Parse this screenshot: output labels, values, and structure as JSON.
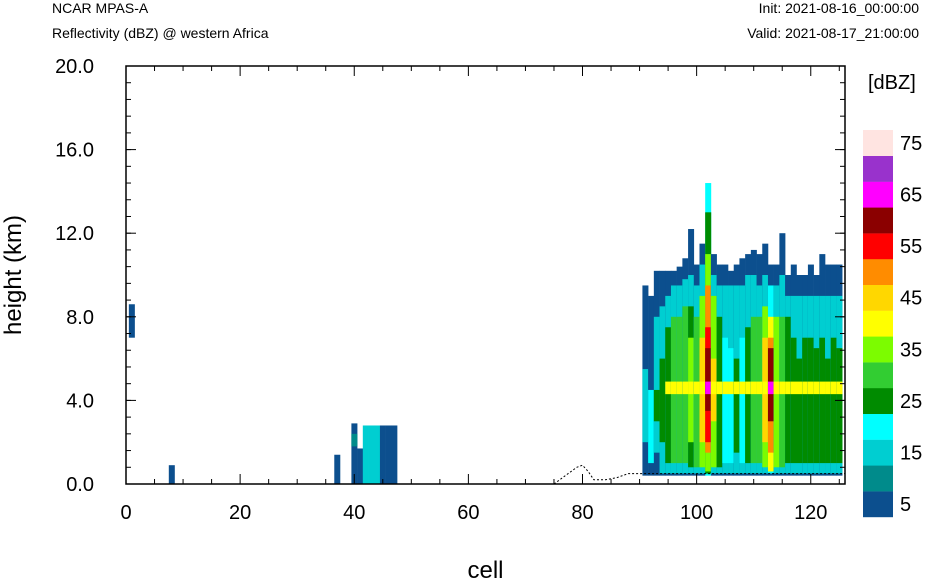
{
  "header": {
    "model": "NCAR MPAS-A",
    "field": "Reflectivity (dBZ) @ western Africa",
    "init": "Init: 2021-08-16_00:00:00",
    "valid": "Valid: 2021-08-17_21:00:00"
  },
  "chart_data": {
    "type": "heatmap",
    "title": "Reflectivity (dBZ) @ western Africa",
    "xlabel": "cell",
    "ylabel": "height (km)",
    "xlim": [
      0,
      126
    ],
    "ylim": [
      0,
      20
    ],
    "x_ticks": [
      "0",
      "20",
      "40",
      "60",
      "80",
      "100",
      "120"
    ],
    "y_ticks": [
      "0.0",
      "4.0",
      "8.0",
      "12.0",
      "16.0",
      "20.0"
    ],
    "colorbar": {
      "unit": "[dBZ]",
      "levels": [
        5,
        10,
        15,
        20,
        25,
        30,
        35,
        40,
        45,
        50,
        55,
        60,
        65,
        70,
        75
      ],
      "labels": [
        "5",
        "15",
        "25",
        "35",
        "45",
        "55",
        "65",
        "75"
      ],
      "colors": [
        "#0c4f8e",
        "#008b8b",
        "#00ced1",
        "#00ffff",
        "#008b00",
        "#32cd32",
        "#7cfc00",
        "#ffff00",
        "#ffd700",
        "#ff8c00",
        "#ff0000",
        "#8b0000",
        "#ff00ff",
        "#9932cc",
        "#ffe4e1"
      ]
    },
    "terrain": [
      [
        0,
        0.0
      ],
      [
        75,
        0.0
      ],
      [
        77,
        0.4
      ],
      [
        79,
        0.8
      ],
      [
        80,
        0.9
      ],
      [
        81,
        0.6
      ],
      [
        82,
        0.2
      ],
      [
        84,
        0.2
      ],
      [
        86,
        0.3
      ],
      [
        88,
        0.5
      ],
      [
        90,
        0.5
      ],
      [
        126,
        0.5
      ]
    ],
    "cells": [
      [
        1,
        7.0,
        8.6,
        5
      ],
      [
        8,
        0.0,
        0.9,
        5
      ],
      [
        37,
        0.0,
        1.4,
        5
      ],
      [
        40,
        0.0,
        2.9,
        5
      ],
      [
        40,
        1.8,
        2.4,
        10
      ],
      [
        41,
        0.0,
        1.7,
        5
      ],
      [
        42,
        0.0,
        2.8,
        15
      ],
      [
        43,
        0.0,
        2.8,
        15
      ],
      [
        44,
        0.0,
        2.8,
        15
      ],
      [
        45,
        0.0,
        2.8,
        5
      ],
      [
        46,
        0.0,
        2.8,
        5
      ],
      [
        47,
        0.0,
        2.8,
        5
      ],
      [
        91,
        0.4,
        9.5,
        5
      ],
      [
        91,
        2.0,
        5.5,
        15
      ],
      [
        92,
        0.4,
        9.0,
        5
      ],
      [
        92,
        1.0,
        4.5,
        20
      ],
      [
        93,
        0.4,
        10.2,
        5
      ],
      [
        93,
        1.5,
        8.0,
        15
      ],
      [
        93,
        3.0,
        4.5,
        25
      ],
      [
        94,
        0.4,
        10.2,
        5
      ],
      [
        94,
        0.5,
        8.5,
        15
      ],
      [
        94,
        2.0,
        6.0,
        25
      ],
      [
        95,
        0.4,
        10.2,
        5
      ],
      [
        95,
        0.5,
        9.0,
        15
      ],
      [
        95,
        1.0,
        7.5,
        25
      ],
      [
        95,
        4.3,
        4.9,
        40
      ],
      [
        96,
        0.4,
        10.2,
        5
      ],
      [
        96,
        0.5,
        9.5,
        15
      ],
      [
        96,
        1.0,
        8.0,
        30
      ],
      [
        96,
        4.3,
        4.9,
        40
      ],
      [
        97,
        0.4,
        10.4,
        5
      ],
      [
        97,
        0.5,
        9.5,
        15
      ],
      [
        97,
        1.0,
        8.0,
        30
      ],
      [
        97,
        4.3,
        4.9,
        40
      ],
      [
        98,
        0.4,
        10.8,
        5
      ],
      [
        98,
        0.5,
        9.8,
        15
      ],
      [
        98,
        1.0,
        8.5,
        30
      ],
      [
        98,
        4.3,
        4.9,
        40
      ],
      [
        99,
        0.4,
        12.2,
        5
      ],
      [
        99,
        0.5,
        10.0,
        15
      ],
      [
        99,
        0.8,
        8.5,
        25
      ],
      [
        99,
        2.0,
        7.0,
        35
      ],
      [
        99,
        4.3,
        4.9,
        40
      ],
      [
        100,
        0.4,
        10.5,
        5
      ],
      [
        100,
        0.5,
        9.5,
        15
      ],
      [
        100,
        0.8,
        8.0,
        30
      ],
      [
        100,
        4.3,
        4.9,
        40
      ],
      [
        101,
        0.4,
        11.5,
        5
      ],
      [
        101,
        0.5,
        10.5,
        15
      ],
      [
        101,
        0.8,
        9.0,
        35
      ],
      [
        101,
        2.0,
        7.0,
        45
      ],
      [
        101,
        4.3,
        4.9,
        40
      ],
      [
        102,
        0.4,
        14.4,
        20
      ],
      [
        102,
        0.5,
        13.0,
        25
      ],
      [
        102,
        0.6,
        11.0,
        35
      ],
      [
        102,
        1.5,
        9.5,
        50
      ],
      [
        102,
        2.0,
        7.5,
        55
      ],
      [
        102,
        3.5,
        6.5,
        60
      ],
      [
        102,
        4.3,
        4.9,
        65
      ],
      [
        103,
        0.4,
        11.0,
        5
      ],
      [
        103,
        0.5,
        10.0,
        15
      ],
      [
        103,
        0.8,
        9.0,
        35
      ],
      [
        103,
        3.0,
        6.0,
        45
      ],
      [
        103,
        4.3,
        4.9,
        40
      ],
      [
        104,
        0.4,
        10.5,
        5
      ],
      [
        104,
        0.5,
        9.5,
        15
      ],
      [
        104,
        0.8,
        8.0,
        25
      ],
      [
        104,
        4.3,
        4.9,
        40
      ],
      [
        105,
        0.4,
        10.5,
        5
      ],
      [
        105,
        0.5,
        9.5,
        15
      ],
      [
        105,
        1.0,
        7.0,
        20
      ],
      [
        105,
        4.3,
        4.9,
        40
      ],
      [
        106,
        0.4,
        10.2,
        5
      ],
      [
        106,
        0.5,
        9.5,
        15
      ],
      [
        106,
        1.0,
        6.5,
        20
      ],
      [
        106,
        4.3,
        4.9,
        40
      ],
      [
        107,
        0.4,
        10.5,
        5
      ],
      [
        107,
        0.5,
        9.5,
        15
      ],
      [
        107,
        1.5,
        6.0,
        25
      ],
      [
        107,
        4.3,
        4.9,
        40
      ],
      [
        108,
        0.4,
        10.8,
        5
      ],
      [
        108,
        0.5,
        9.5,
        15
      ],
      [
        108,
        1.0,
        7.0,
        20
      ],
      [
        108,
        4.3,
        4.9,
        40
      ],
      [
        109,
        0.4,
        11.0,
        5
      ],
      [
        109,
        0.5,
        10.0,
        15
      ],
      [
        109,
        1.0,
        7.5,
        25
      ],
      [
        109,
        4.3,
        4.9,
        40
      ],
      [
        110,
        0.4,
        11.2,
        5
      ],
      [
        110,
        0.5,
        10.0,
        15
      ],
      [
        110,
        1.0,
        8.0,
        30
      ],
      [
        110,
        4.3,
        4.9,
        40
      ],
      [
        111,
        0.4,
        11.0,
        5
      ],
      [
        111,
        0.5,
        9.5,
        15
      ],
      [
        111,
        1.0,
        8.0,
        30
      ],
      [
        111,
        4.3,
        4.9,
        40
      ],
      [
        112,
        0.4,
        11.5,
        5
      ],
      [
        112,
        0.5,
        10.0,
        15
      ],
      [
        112,
        0.8,
        8.5,
        35
      ],
      [
        112,
        2.0,
        7.0,
        45
      ],
      [
        112,
        4.3,
        4.9,
        40
      ],
      [
        113,
        0.4,
        10.5,
        5
      ],
      [
        113,
        0.5,
        9.5,
        20
      ],
      [
        113,
        0.6,
        8.0,
        40
      ],
      [
        113,
        1.5,
        7.0,
        50
      ],
      [
        113,
        3.0,
        6.5,
        60
      ],
      [
        113,
        4.3,
        4.9,
        65
      ],
      [
        114,
        0.4,
        10.5,
        5
      ],
      [
        114,
        0.5,
        9.5,
        15
      ],
      [
        114,
        0.8,
        8.0,
        35
      ],
      [
        114,
        4.3,
        4.9,
        40
      ],
      [
        115,
        0.4,
        12.0,
        5
      ],
      [
        115,
        0.5,
        10.0,
        15
      ],
      [
        115,
        0.8,
        8.0,
        30
      ],
      [
        115,
        4.3,
        4.9,
        40
      ],
      [
        116,
        0.4,
        10.0,
        5
      ],
      [
        116,
        0.5,
        9.0,
        15
      ],
      [
        116,
        1.0,
        8.0,
        25
      ],
      [
        116,
        4.3,
        4.9,
        40
      ],
      [
        117,
        0.4,
        10.5,
        5
      ],
      [
        117,
        0.5,
        9.0,
        15
      ],
      [
        117,
        1.0,
        7.0,
        25
      ],
      [
        117,
        4.3,
        4.9,
        40
      ],
      [
        118,
        0.4,
        10.0,
        5
      ],
      [
        118,
        0.5,
        9.0,
        15
      ],
      [
        118,
        1.0,
        6.0,
        25
      ],
      [
        118,
        4.3,
        4.9,
        40
      ],
      [
        119,
        0.4,
        10.0,
        5
      ],
      [
        119,
        0.5,
        9.0,
        15
      ],
      [
        119,
        1.0,
        7.0,
        25
      ],
      [
        119,
        4.3,
        4.9,
        40
      ],
      [
        120,
        0.4,
        10.5,
        5
      ],
      [
        120,
        0.5,
        9.0,
        15
      ],
      [
        120,
        1.0,
        7.0,
        25
      ],
      [
        120,
        4.3,
        4.9,
        40
      ],
      [
        121,
        0.4,
        10.0,
        5
      ],
      [
        121,
        0.5,
        9.0,
        15
      ],
      [
        121,
        1.0,
        6.5,
        25
      ],
      [
        121,
        4.3,
        4.9,
        40
      ],
      [
        122,
        0.4,
        11.0,
        5
      ],
      [
        122,
        0.5,
        9.0,
        15
      ],
      [
        122,
        1.0,
        7.0,
        25
      ],
      [
        122,
        4.3,
        4.9,
        40
      ],
      [
        123,
        0.4,
        10.5,
        5
      ],
      [
        123,
        0.5,
        9.0,
        15
      ],
      [
        123,
        1.0,
        6.0,
        25
      ],
      [
        123,
        4.3,
        4.9,
        40
      ],
      [
        124,
        0.4,
        10.5,
        5
      ],
      [
        124,
        0.5,
        9.0,
        15
      ],
      [
        124,
        1.0,
        7.0,
        25
      ],
      [
        124,
        4.3,
        4.9,
        40
      ],
      [
        125,
        0.4,
        10.5,
        5
      ],
      [
        125,
        0.5,
        9.0,
        15
      ],
      [
        125,
        1.0,
        6.5,
        25
      ],
      [
        125,
        4.3,
        4.9,
        40
      ]
    ]
  }
}
